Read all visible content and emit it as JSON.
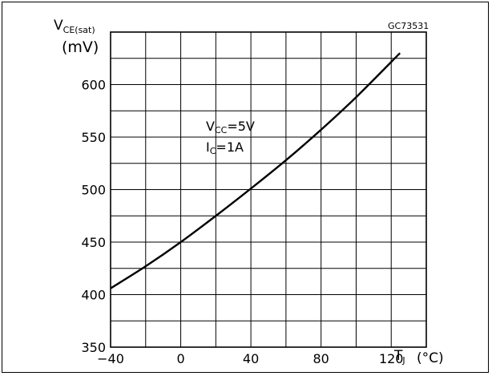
{
  "chart_data": {
    "type": "line",
    "code": "GC73531",
    "ylabel": {
      "main": "V",
      "sub": "CE(sat)",
      "unit": "(mV)"
    },
    "xlabel": {
      "main": "T",
      "sub": "J",
      "unit": "(°C)"
    },
    "xlim": [
      -40,
      140
    ],
    "ylim": [
      350,
      650
    ],
    "x_ticks": [
      -40,
      0,
      40,
      80,
      120
    ],
    "x_tick_labels": [
      "−40",
      "0",
      "40",
      "80",
      "120"
    ],
    "y_ticks": [
      350,
      400,
      450,
      500,
      550,
      600
    ],
    "y_tick_labels": [
      "350",
      "400",
      "450",
      "500",
      "550",
      "600"
    ],
    "grid": true,
    "annotations": [
      {
        "main": "V",
        "sub": "CC",
        "rest": "=5V"
      },
      {
        "main": "I",
        "sub": "C",
        "rest": "=1A"
      }
    ],
    "series": [
      {
        "x": [
          -40,
          -20,
          0,
          20,
          40,
          60,
          80,
          100,
          125
        ],
        "values": [
          406,
          427,
          450,
          475,
          501,
          528,
          557,
          588,
          630
        ]
      }
    ]
  }
}
